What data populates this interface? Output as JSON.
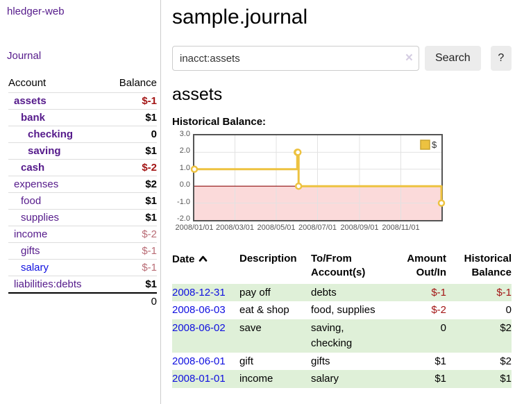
{
  "colors": {
    "link_purple": "#551a8b",
    "link_blue": "#0f0fe0",
    "negative": "#a31515",
    "negative_muted": "#b96c75",
    "row_green": "#dff0d8",
    "series_gold": "#edc240",
    "negative_region_pink": "#fbdada",
    "zero_line_red": "#8e0d0d",
    "chart_border": "#545454"
  },
  "sidebar": {
    "brand": "hledger-web",
    "nav_journal": "Journal",
    "accounts": {
      "col_account": "Account",
      "col_balance": "Balance",
      "rows": [
        {
          "name": "assets",
          "balance": "$-1",
          "indent": 0,
          "bold": true,
          "link": "purple",
          "balance_style": "negative"
        },
        {
          "name": "bank",
          "balance": "$1",
          "indent": 1,
          "bold": true,
          "link": "purple",
          "balance_style": "positive"
        },
        {
          "name": "checking",
          "balance": "0",
          "indent": 2,
          "bold": true,
          "link": "purple",
          "balance_style": "positive"
        },
        {
          "name": "saving",
          "balance": "$1",
          "indent": 2,
          "bold": true,
          "link": "purple",
          "balance_style": "positive"
        },
        {
          "name": "cash",
          "balance": "$-2",
          "indent": 1,
          "bold": true,
          "link": "purple",
          "balance_style": "negative"
        },
        {
          "name": "expenses",
          "balance": "$2",
          "indent": 0,
          "bold": false,
          "link": "purple",
          "balance_style": "positive"
        },
        {
          "name": "food",
          "balance": "$1",
          "indent": 1,
          "bold": false,
          "link": "purple",
          "balance_style": "positive"
        },
        {
          "name": "supplies",
          "balance": "$1",
          "indent": 1,
          "bold": false,
          "link": "purple",
          "balance_style": "positive"
        },
        {
          "name": "income",
          "balance": "$-2",
          "indent": 0,
          "bold": false,
          "link": "purple",
          "balance_style": "negative-muted"
        },
        {
          "name": "gifts",
          "balance": "$-1",
          "indent": 1,
          "bold": false,
          "link": "purple",
          "balance_style": "negative-muted"
        },
        {
          "name": "salary",
          "balance": "$-1",
          "indent": 1,
          "bold": false,
          "link": "blue",
          "balance_style": "negative-muted"
        },
        {
          "name": "liabilities:debts",
          "balance": "$1",
          "indent": 0,
          "bold": false,
          "link": "purple",
          "balance_style": "positive"
        }
      ],
      "total": "0"
    }
  },
  "main": {
    "title": "sample.journal",
    "search": {
      "value": "inacct:assets",
      "clear_icon": "×",
      "button": "Search",
      "help_button": "?"
    },
    "account_heading": "assets",
    "chart_heading": "Historical Balance:",
    "chart_data": {
      "type": "line",
      "step": true,
      "title": "Historical Balance:",
      "series": [
        {
          "name": "$",
          "color": "#edc240",
          "points": [
            [
              "2008-01-01",
              1
            ],
            [
              "2008-06-01",
              2
            ],
            [
              "2008-06-02",
              2
            ],
            [
              "2008-06-03",
              0
            ],
            [
              "2008-12-31",
              -1
            ]
          ]
        }
      ],
      "ylim": [
        -2,
        3
      ],
      "xlim": [
        "2008-01-01",
        "2008-12-31"
      ],
      "y_tick_labels": [
        "3.0",
        "2.0",
        "1.0",
        "0.0",
        "-1.0",
        "-2.0"
      ],
      "y_ticks": [
        3,
        2,
        1,
        0,
        -1,
        -2
      ],
      "x_ticks": [
        "2008-01-01",
        "2008-03-01",
        "2008-05-01",
        "2008-07-01",
        "2008-09-01",
        "2008-11-01"
      ],
      "x_tick_labels": [
        "2008/01/01",
        "2008/03/01",
        "2008/05/01",
        "2008/07/01",
        "2008/09/01",
        "2008/11/01"
      ],
      "legend_position": "top-right",
      "grid": true
    },
    "register": {
      "columns": {
        "date": "Date",
        "description": "Description",
        "tofrom": "To/From Account(s)",
        "amount": "Amount Out/In",
        "balance": "Historical Balance"
      },
      "sort_order": "ascending",
      "rows": [
        {
          "date": "2008-12-31",
          "description": "pay off",
          "accounts": "debts",
          "amount": "$-1",
          "amount_negative": true,
          "balance": "$-1",
          "balance_negative": true
        },
        {
          "date": "2008-06-03",
          "description": "eat & shop",
          "accounts": "food, supplies",
          "amount": "$-2",
          "amount_negative": true,
          "balance": "0",
          "balance_negative": false
        },
        {
          "date": "2008-06-02",
          "description": "save",
          "accounts": "saving, checking",
          "amount": "0",
          "amount_negative": false,
          "balance": "$2",
          "balance_negative": false
        },
        {
          "date": "2008-06-01",
          "description": "gift",
          "accounts": "gifts",
          "amount": "$1",
          "amount_negative": false,
          "balance": "$2",
          "balance_negative": false
        },
        {
          "date": "2008-01-01",
          "description": "income",
          "accounts": "salary",
          "amount": "$1",
          "amount_negative": false,
          "balance": "$1",
          "balance_negative": false
        }
      ]
    }
  }
}
